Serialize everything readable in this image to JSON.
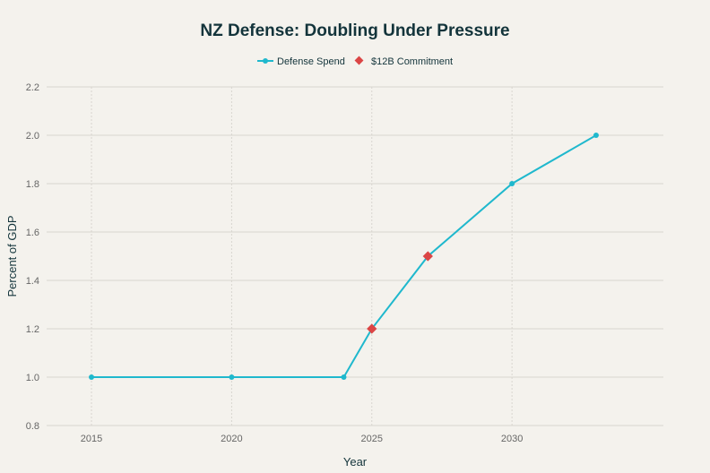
{
  "chart_data": {
    "type": "line",
    "title": "NZ Defense: Doubling Under Pressure",
    "xlabel": "Year",
    "ylabel": "Percent of GDP",
    "xlim": [
      2013.4,
      2035.4
    ],
    "ylim": [
      0.8,
      2.2
    ],
    "x_ticks": [
      2015,
      2020,
      2025,
      2030
    ],
    "y_ticks": [
      "0.8",
      "1.0",
      "1.2",
      "1.4",
      "1.6",
      "1.8",
      "2.0",
      "2.2"
    ],
    "grid": true,
    "legend_placement": "top-center",
    "series": [
      {
        "name": "Defense Spend",
        "color": "#1fb8cd",
        "marker": "circle",
        "x": [
          2015,
          2020,
          2024,
          2025,
          2027,
          2030,
          2033
        ],
        "y": [
          1.0,
          1.0,
          1.0,
          1.2,
          1.5,
          1.8,
          2.0
        ]
      },
      {
        "name": "$12B Commitment",
        "color": "#db4545",
        "marker": "diamond",
        "x": [
          2025,
          2027
        ],
        "y": [
          1.2,
          1.5
        ]
      }
    ]
  }
}
